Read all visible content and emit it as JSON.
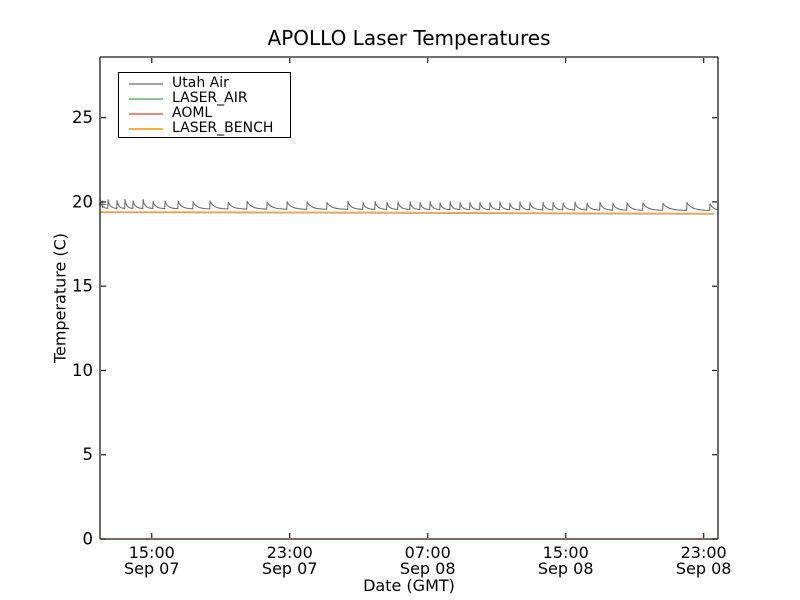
{
  "chart_data": {
    "type": "line",
    "title": "APOLLO Laser Temperatures",
    "xlabel": "Date (GMT)",
    "ylabel": "Temperature (C)",
    "x_unit": "hours since Sep 07 00:00 GMT",
    "xlim_hours": [
      12.0,
      47.83
    ],
    "ylim": [
      0,
      28.6
    ],
    "grid": false,
    "y_ticks": [
      0,
      5,
      10,
      15,
      20,
      25
    ],
    "x_ticks": [
      {
        "hour": 15,
        "time": "15:00",
        "date": "Sep 07"
      },
      {
        "hour": 23,
        "time": "23:00",
        "date": "Sep 07"
      },
      {
        "hour": 31,
        "time": "07:00",
        "date": "Sep 08"
      },
      {
        "hour": 39,
        "time": "15:00",
        "date": "Sep 08"
      },
      {
        "hour": 47,
        "time": "23:00",
        "date": "Sep 08"
      }
    ],
    "legend_position": "upper left",
    "series": [
      {
        "name": "Utah Air",
        "color": "#a3a3a3",
        "data_color": "#6e6e6e",
        "style": "spiky",
        "baseline_points": [
          [
            12,
            19.62
          ],
          [
            16,
            19.6
          ],
          [
            20,
            19.575
          ],
          [
            24,
            19.56
          ],
          [
            28,
            19.555
          ],
          [
            32,
            19.545
          ],
          [
            36,
            19.535
          ],
          [
            40,
            19.52
          ],
          [
            44,
            19.5
          ],
          [
            47.83,
            19.49
          ]
        ],
        "spike_amp": 0.44,
        "spike_amp_early": 0.5,
        "early_count": 6,
        "spike_hours": [
          12.0,
          12.45,
          12.97,
          13.43,
          13.9,
          14.48,
          15.06,
          15.75,
          16.51,
          17.38,
          18.36,
          19.41,
          20.51,
          21.67,
          22.83,
          23.99,
          25.14,
          26.36,
          27.23,
          27.93,
          28.62,
          29.26,
          29.96,
          30.54,
          31.12,
          31.7,
          32.28,
          32.86,
          33.43,
          34.01,
          34.59,
          35.17,
          35.75,
          36.33,
          36.91,
          37.67,
          38.25,
          38.83,
          39.52,
          40.22,
          40.97,
          41.72,
          42.54,
          43.46,
          44.62,
          46.01,
          47.35
        ],
        "start_marker": {
          "shape": "plus",
          "hour": 12.15,
          "value": 19.86
        }
      },
      {
        "name": "LASER_AIR",
        "color": "#8dc48d",
        "style": "smooth",
        "points": [
          [
            12,
            19.365
          ],
          [
            16,
            19.36
          ],
          [
            20,
            19.35
          ],
          [
            24,
            19.345
          ],
          [
            28,
            19.335
          ],
          [
            32,
            19.32
          ],
          [
            36,
            19.305
          ],
          [
            40,
            19.29
          ],
          [
            44,
            19.28
          ],
          [
            47.83,
            19.27
          ]
        ]
      },
      {
        "name": "AOML",
        "color": "#f08584",
        "style": "smooth",
        "points": [
          [
            12,
            19.39
          ],
          [
            16,
            19.385
          ],
          [
            20,
            19.375
          ],
          [
            24,
            19.37
          ],
          [
            28,
            19.36
          ],
          [
            32,
            19.345
          ],
          [
            36,
            19.33
          ],
          [
            40,
            19.315
          ],
          [
            44,
            19.305
          ],
          [
            47.83,
            19.295
          ]
        ]
      },
      {
        "name": "LASER_BENCH",
        "color": "#fcaf3e",
        "style": "smooth",
        "points": [
          [
            12,
            19.42
          ],
          [
            16,
            19.415
          ],
          [
            20,
            19.405
          ],
          [
            24,
            19.4
          ],
          [
            28,
            19.39
          ],
          [
            32,
            19.375
          ],
          [
            36,
            19.36
          ],
          [
            40,
            19.345
          ],
          [
            44,
            19.335
          ],
          [
            47.83,
            19.325
          ]
        ]
      }
    ],
    "colors": {
      "spine": "#1c1c1c",
      "bottom_spine": "#50382b",
      "tick": "#1c1c1c",
      "background": "#ffffff"
    }
  }
}
